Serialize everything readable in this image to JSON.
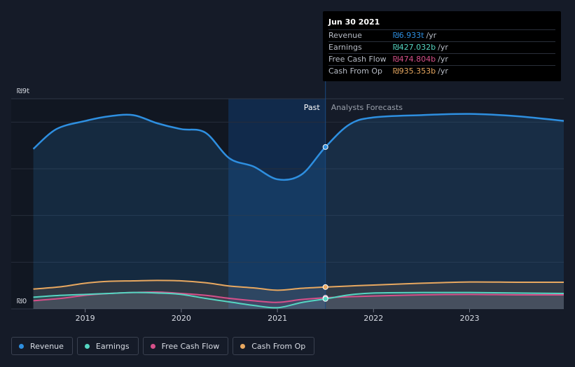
{
  "colors": {
    "revenue": "#2e8fe0",
    "earnings": "#55d6c2",
    "free_cash_flow": "#d6508a",
    "cash_from_op": "#e8a860",
    "background": "#151b28",
    "highlight": "#11325a"
  },
  "y_axis": {
    "top_label": "₪9t",
    "bottom_label": "₪0"
  },
  "regions": {
    "past": "Past",
    "forecast": "Analysts Forecasts"
  },
  "tooltip": {
    "date": "Jun 30 2021",
    "rows": [
      {
        "label": "Revenue",
        "value": "₪6.933t",
        "unit": "/yr",
        "color": "#2e8fe0"
      },
      {
        "label": "Earnings",
        "value": "₪427.032b",
        "unit": "/yr",
        "color": "#55d6c2"
      },
      {
        "label": "Free Cash Flow",
        "value": "₪474.804b",
        "unit": "/yr",
        "color": "#d6508a"
      },
      {
        "label": "Cash From Op",
        "value": "₪935.353b",
        "unit": "/yr",
        "color": "#e8a860"
      }
    ]
  },
  "legend": [
    {
      "label": "Revenue",
      "color": "#2e8fe0"
    },
    {
      "label": "Earnings",
      "color": "#55d6c2"
    },
    {
      "label": "Free Cash Flow",
      "color": "#d6508a"
    },
    {
      "label": "Cash From Op",
      "color": "#e8a860"
    }
  ],
  "chart_data": {
    "type": "area",
    "x_ticks": [
      "2019",
      "2020",
      "2021",
      "2022",
      "2023"
    ],
    "x_tick_values": [
      2019.0,
      2020.0,
      2021.0,
      2022.0,
      2023.0
    ],
    "xlim": [
      2018.23,
      2023.98
    ],
    "ylim": [
      0,
      9
    ],
    "y_unit": "₪ trillion",
    "past_highlight_range": [
      2020.49,
      2021.5
    ],
    "forecast_start": 2021.5,
    "series": [
      {
        "name": "Revenue",
        "points": [
          [
            2018.46,
            6.85
          ],
          [
            2018.7,
            7.7
          ],
          [
            2019.0,
            8.05
          ],
          [
            2019.25,
            8.25
          ],
          [
            2019.5,
            8.3
          ],
          [
            2019.75,
            7.95
          ],
          [
            2020.0,
            7.7
          ],
          [
            2020.25,
            7.55
          ],
          [
            2020.5,
            6.45
          ],
          [
            2020.75,
            6.1
          ],
          [
            2021.0,
            5.55
          ],
          [
            2021.25,
            5.75
          ],
          [
            2021.5,
            6.933
          ],
          [
            2021.75,
            7.9
          ],
          [
            2022.0,
            8.2
          ],
          [
            2022.5,
            8.3
          ],
          [
            2023.0,
            8.35
          ],
          [
            2023.5,
            8.25
          ],
          [
            2023.98,
            8.05
          ]
        ]
      },
      {
        "name": "Earnings",
        "points": [
          [
            2018.46,
            0.5
          ],
          [
            2018.75,
            0.58
          ],
          [
            2019.0,
            0.62
          ],
          [
            2019.25,
            0.66
          ],
          [
            2019.5,
            0.7
          ],
          [
            2019.75,
            0.68
          ],
          [
            2020.0,
            0.62
          ],
          [
            2020.25,
            0.45
          ],
          [
            2020.5,
            0.3
          ],
          [
            2020.75,
            0.15
          ],
          [
            2021.0,
            0.05
          ],
          [
            2021.25,
            0.27
          ],
          [
            2021.5,
            0.427
          ],
          [
            2021.75,
            0.6
          ],
          [
            2022.0,
            0.68
          ],
          [
            2022.5,
            0.7
          ],
          [
            2023.0,
            0.7
          ],
          [
            2023.5,
            0.68
          ],
          [
            2023.98,
            0.66
          ]
        ]
      },
      {
        "name": "Free Cash Flow",
        "points": [
          [
            2018.46,
            0.35
          ],
          [
            2018.75,
            0.45
          ],
          [
            2019.0,
            0.58
          ],
          [
            2019.25,
            0.66
          ],
          [
            2019.5,
            0.7
          ],
          [
            2019.75,
            0.72
          ],
          [
            2020.0,
            0.66
          ],
          [
            2020.25,
            0.58
          ],
          [
            2020.5,
            0.45
          ],
          [
            2020.75,
            0.35
          ],
          [
            2021.0,
            0.28
          ],
          [
            2021.25,
            0.4
          ],
          [
            2021.5,
            0.4748
          ],
          [
            2021.75,
            0.52
          ],
          [
            2022.0,
            0.55
          ],
          [
            2022.5,
            0.6
          ],
          [
            2023.0,
            0.62
          ],
          [
            2023.5,
            0.6
          ],
          [
            2023.98,
            0.6
          ]
        ]
      },
      {
        "name": "Cash From Op",
        "points": [
          [
            2018.46,
            0.85
          ],
          [
            2018.75,
            0.95
          ],
          [
            2019.0,
            1.1
          ],
          [
            2019.25,
            1.18
          ],
          [
            2019.5,
            1.2
          ],
          [
            2019.75,
            1.22
          ],
          [
            2020.0,
            1.2
          ],
          [
            2020.25,
            1.12
          ],
          [
            2020.5,
            0.98
          ],
          [
            2020.75,
            0.9
          ],
          [
            2021.0,
            0.8
          ],
          [
            2021.25,
            0.88
          ],
          [
            2021.5,
            0.935
          ],
          [
            2021.75,
            0.98
          ],
          [
            2022.0,
            1.02
          ],
          [
            2022.5,
            1.1
          ],
          [
            2023.0,
            1.15
          ],
          [
            2023.5,
            1.14
          ],
          [
            2023.98,
            1.14
          ]
        ]
      }
    ]
  }
}
